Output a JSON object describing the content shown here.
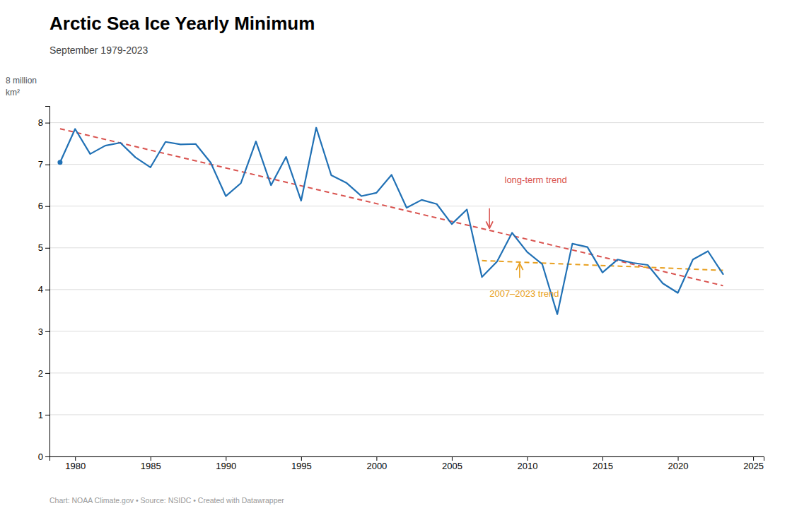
{
  "chart_data": {
    "type": "line",
    "title": "Arctic Sea Ice Yearly Minimum",
    "subtitle": "September 1979-2023",
    "ylabel": [
      "8 million",
      "km²"
    ],
    "footer": "Chart: NOAA Climate.gov • Source: NSIDC • Created with Datawrapper",
    "x": [
      1979,
      1980,
      1981,
      1982,
      1983,
      1984,
      1985,
      1986,
      1987,
      1988,
      1989,
      1990,
      1991,
      1992,
      1993,
      1994,
      1995,
      1996,
      1997,
      1998,
      1999,
      2000,
      2001,
      2002,
      2003,
      2004,
      2005,
      2006,
      2007,
      2008,
      2009,
      2010,
      2011,
      2012,
      2013,
      2014,
      2015,
      2016,
      2017,
      2018,
      2019,
      2020,
      2021,
      2022,
      2023
    ],
    "values": [
      7.05,
      7.85,
      7.25,
      7.45,
      7.52,
      7.17,
      6.93,
      7.54,
      7.48,
      7.49,
      7.04,
      6.24,
      6.55,
      7.55,
      6.5,
      7.18,
      6.13,
      7.88,
      6.74,
      6.56,
      6.24,
      6.32,
      6.75,
      5.96,
      6.15,
      6.05,
      5.57,
      5.92,
      4.3,
      4.67,
      5.36,
      4.9,
      4.61,
      3.41,
      5.1,
      5.02,
      4.41,
      4.72,
      4.64,
      4.59,
      4.15,
      3.92,
      4.72,
      4.92,
      4.37
    ],
    "color": "#2171b5",
    "trends": [
      {
        "x": [
          1979,
          2023
        ],
        "values": [
          7.8549,
          4.0949
        ],
        "color": "#d9534f",
        "line_style": "dashed"
      },
      {
        "x": [
          2007,
          2023
        ],
        "values": [
          4.6937,
          4.4604
        ],
        "color": "#e8a020",
        "line_style": "dashed"
      }
    ],
    "annotations": [
      {
        "text": "long-term trend",
        "x": 2008.5,
        "y": 6.62,
        "color": "#d9534f",
        "arrow_from": [
          2007.5,
          5.95
        ],
        "arrow_to": [
          2007.5,
          5.47
        ]
      },
      {
        "text": "2007–2023 trend",
        "x": 2007.5,
        "y": 3.88,
        "color": "#e8a020",
        "arrow_from": [
          2009.5,
          4.28
        ],
        "arrow_to": [
          2009.5,
          4.63
        ]
      }
    ],
    "xlim": [
      1978.3,
      2025.7
    ],
    "ylim": [
      0,
      8.4
    ],
    "xticks": [
      1980,
      1985,
      1990,
      1995,
      2000,
      2005,
      2010,
      2015,
      2020,
      2025
    ],
    "yticks": [
      0,
      1,
      2,
      3,
      4,
      5,
      6,
      7,
      8
    ],
    "grid": true
  }
}
